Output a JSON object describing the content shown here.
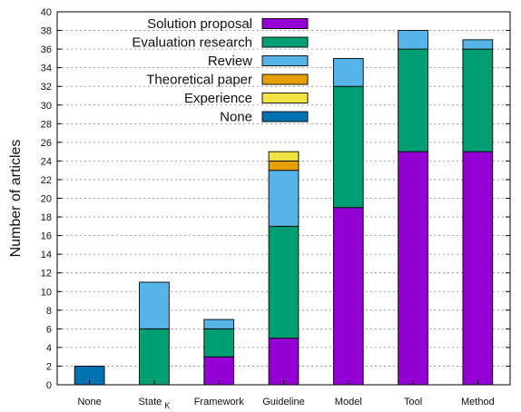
{
  "chart_data": {
    "type": "bar",
    "stacked": true,
    "title": "",
    "xlabel": "",
    "ylabel": "Number of articles",
    "ylim": [
      0,
      40
    ],
    "yticks": [
      0,
      2,
      4,
      6,
      8,
      10,
      12,
      14,
      16,
      18,
      20,
      22,
      24,
      26,
      28,
      30,
      32,
      34,
      36,
      38,
      40
    ],
    "grid": "horizontal dashed",
    "legend_position": "top-left",
    "categories": [
      {
        "base": "None",
        "sub": ""
      },
      {
        "base": "State",
        "sub": "K"
      },
      {
        "base": "Framework",
        "sub": ""
      },
      {
        "base": "Guideline",
        "sub": ""
      },
      {
        "base": "Model",
        "sub": ""
      },
      {
        "base": "Tool",
        "sub": ""
      },
      {
        "base": "Method",
        "sub": ""
      }
    ],
    "series": [
      {
        "name": "Solution proposal",
        "color": "#9400d3",
        "values": [
          0,
          0,
          3,
          5,
          19,
          25,
          25
        ]
      },
      {
        "name": "Evaluation research",
        "color": "#009e73",
        "values": [
          0,
          6,
          3,
          12,
          13,
          11,
          11
        ]
      },
      {
        "name": "Review",
        "color": "#56b4e9",
        "values": [
          0,
          5,
          1,
          6,
          3,
          2,
          1
        ]
      },
      {
        "name": "Theoretical paper",
        "color": "#e69f00",
        "values": [
          0,
          0,
          0,
          1,
          0,
          0,
          0
        ]
      },
      {
        "name": "Experience",
        "color": "#f0e442",
        "values": [
          0,
          0,
          0,
          1,
          0,
          0,
          0
        ]
      },
      {
        "name": "None",
        "color": "#0072b2",
        "values": [
          2,
          0,
          0,
          0,
          0,
          0,
          0
        ]
      }
    ]
  }
}
